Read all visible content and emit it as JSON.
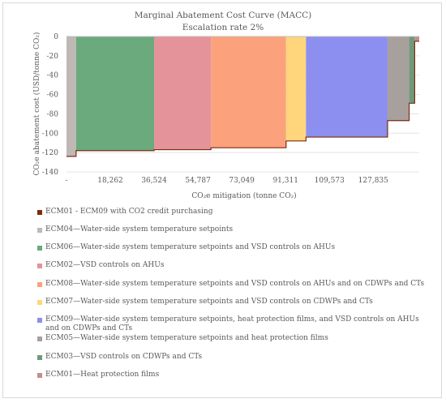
{
  "chart_data": {
    "type": "bar",
    "subtype": "marginal-abatement-cost-curve",
    "title": "Marginal Abatement Cost Curve (MACC)",
    "subtitle": "Escalation rate 2%",
    "ylabel": "CO₂e abatement cost (USD/tonne CO₂)",
    "xlabel": "CO₂e mitigation (tonne CO₂)",
    "ylim": [
      -140,
      0
    ],
    "y_ticks": [
      0,
      -20,
      -40,
      -60,
      -80,
      -100,
      -120,
      -140
    ],
    "x_ticks": [
      0,
      18262,
      36524,
      54787,
      73049,
      91311,
      109573,
      127835
    ],
    "x_tick_labels": [
      "-",
      "18,262",
      "36,524",
      "54,787",
      "73,049",
      "91,311",
      "109,573",
      "127,835"
    ],
    "xlim": [
      0,
      147000
    ],
    "gridlines": true,
    "legend_position": "bottom",
    "series": [
      {
        "name": "ECM01 - ECM09  with CO2 credit purchasing",
        "color": "#7b2c0e",
        "type": "step-line",
        "points": [
          [
            0,
            -124
          ],
          [
            4000,
            -124
          ],
          [
            4000,
            -118
          ],
          [
            36500,
            -118
          ],
          [
            36500,
            -117
          ],
          [
            60200,
            -117
          ],
          [
            60200,
            -115
          ],
          [
            91500,
            -115
          ],
          [
            91500,
            -108
          ],
          [
            99800,
            -108
          ],
          [
            99800,
            -104
          ],
          [
            133800,
            -104
          ],
          [
            133800,
            -87
          ],
          [
            142800,
            -87
          ],
          [
            142800,
            -69
          ],
          [
            145100,
            -69
          ],
          [
            145100,
            -5
          ],
          [
            147000,
            -5
          ]
        ]
      },
      {
        "name": "ECM04—Water-side system temperature setpoints",
        "color": "#bfb8b4",
        "x_start": 0,
        "x_end": 4000,
        "value": -124
      },
      {
        "name": "ECM06—Water-side system temperature setpoints and VSD controls on AHUs",
        "color": "#6aaa7d",
        "x_start": 4000,
        "x_end": 36500,
        "value": -118
      },
      {
        "name": "ECM02—VSD controls on AHUs",
        "color": "#e39399",
        "x_start": 36500,
        "x_end": 60200,
        "value": -117
      },
      {
        "name": "ECM08—Water-side system temperature setpoints and VSD controls on AHUs and on CDWPs and CTs",
        "color": "#fba27c",
        "x_start": 60200,
        "x_end": 91500,
        "value": -115
      },
      {
        "name": "ECM07—Water-side system temperature setpoints and VSD controls on CDWPs and CTs",
        "color": "#ffd67c",
        "x_start": 91500,
        "x_end": 99800,
        "value": -108
      },
      {
        "name": "ECM09—Water-side system temperature setpoints, heat protection films, and VSD controls on AHUs and on CDWPs and CTs",
        "color": "#8c8ef0",
        "x_start": 99800,
        "x_end": 133800,
        "value": -104
      },
      {
        "name": "ECM05—Water-side system temperature setpoints and heat protection films",
        "color": "#a8a09d",
        "x_start": 133800,
        "x_end": 142800,
        "value": -87
      },
      {
        "name": "ECM03—VSD controls on CDWPs and CTs",
        "color": "#6d9a7c",
        "x_start": 142800,
        "x_end": 145100,
        "value": -69
      },
      {
        "name": "ECM01—Heat protection films",
        "color": "#c48e8e",
        "x_start": 145100,
        "x_end": 147000,
        "value": -5
      }
    ]
  }
}
